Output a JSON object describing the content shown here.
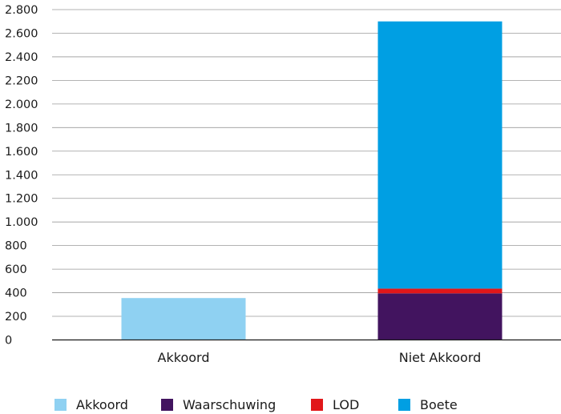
{
  "chart_data": {
    "type": "bar",
    "stacked": true,
    "categories": [
      "Akkoord",
      "Niet Akkoord"
    ],
    "series": [
      {
        "name": "Akkoord",
        "color": "#8fd1f2",
        "values": [
          355,
          0
        ]
      },
      {
        "name": "Waarschuwing",
        "color": "#42145f",
        "values": [
          0,
          395
        ]
      },
      {
        "name": "LOD",
        "color": "#e1171a",
        "values": [
          0,
          40
        ]
      },
      {
        "name": "Boete",
        "color": "#009fe3",
        "values": [
          0,
          2265
        ]
      }
    ],
    "ylim": [
      0,
      2800
    ],
    "yticks": [
      0,
      200,
      400,
      600,
      800,
      1000,
      1200,
      1400,
      1600,
      1800,
      2000,
      2200,
      2400,
      2600,
      2800
    ],
    "ytick_labels": [
      "0",
      "200",
      "400",
      "600",
      "800",
      "1.000",
      "1.200",
      "1.400",
      "1.600",
      "1.800",
      "2.000",
      "2.200",
      "2.400",
      "2.600",
      "2.800"
    ],
    "grid": true,
    "legend_position": "bottom"
  }
}
